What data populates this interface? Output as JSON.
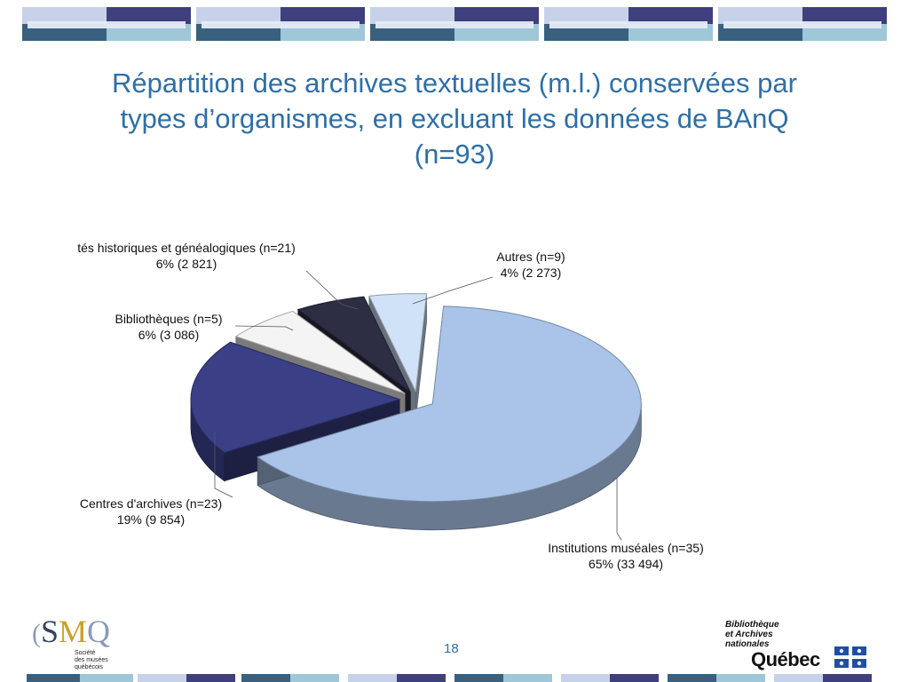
{
  "slide": {
    "title": "Répartition des archives textuelles (m.l.) conservées par types d’organismes, en excluant les données de BAnQ (n=93)",
    "page_number": "18"
  },
  "chart_data": {
    "type": "pie",
    "title": "Répartition des archives textuelles (m.l.) conservées par types d’organismes, en excluant les données de BAnQ (n=93)",
    "slices": [
      {
        "category": "Institutions muséales (n=35)",
        "percent": "65%",
        "value": 33494,
        "value_label": "65% (33 494)",
        "color": "#a9c4e8"
      },
      {
        "category": "Centres d'archives (n=23)",
        "percent": "19%",
        "value": 9854,
        "value_label": "19% (9 854)",
        "color": "#3a3f86"
      },
      {
        "category": "Bibliothèques (n=5)",
        "percent": "6%",
        "value": 3086,
        "value_label": "6% (3 086)",
        "color": "#f4f4f4"
      },
      {
        "category": "tés historiques et généalogiques (n=21)",
        "percent": "6%",
        "value": 2821,
        "value_label": "6% (2 821)",
        "color": "#2d2d44"
      },
      {
        "category": "Autres (n=9)",
        "percent": "4%",
        "value": 2273,
        "value_label": "4% (2 273)",
        "color": "#cfe2f7"
      }
    ]
  },
  "logos": {
    "smq": {
      "letters": [
        "S",
        "M",
        "Q"
      ],
      "subtitle": "Société\ndes musées\nquébécois"
    },
    "banq": {
      "line1": "Bibliothèque",
      "line2": "et Archives",
      "line3": "nationales",
      "quebec": "Québec"
    }
  }
}
